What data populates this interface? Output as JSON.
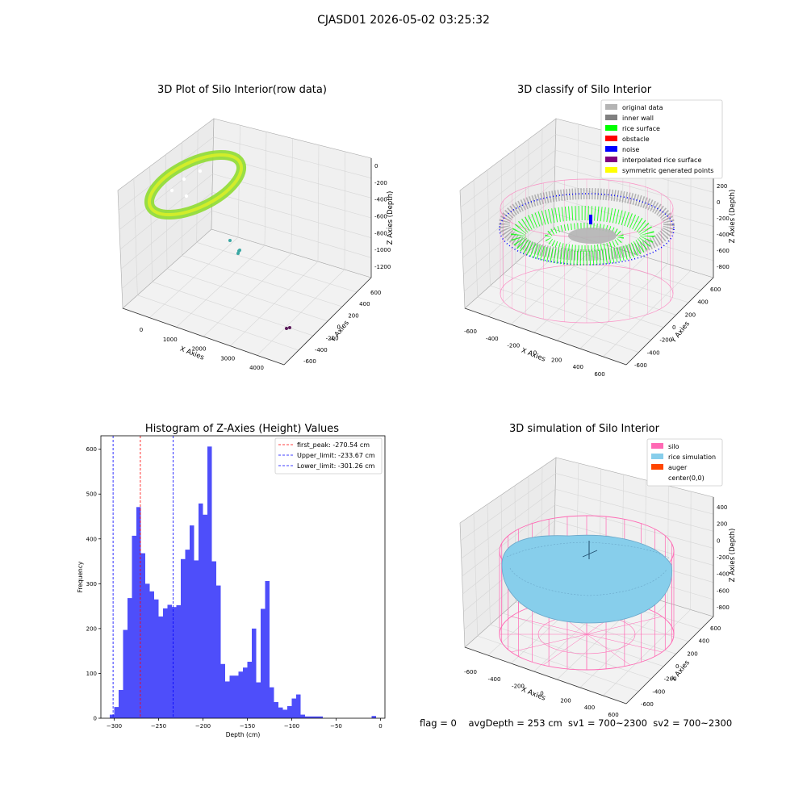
{
  "figure": {
    "suptitle": "CJASD01 2026-05-02 03:25:32",
    "footer": "flag = 0    avgDepth = 253 cm  sv1 = 700~2300  sv2 = 700~2300",
    "colors": {
      "histogram": "#4e4efa",
      "silo": "#ff69b4",
      "rice_simulation": "#87ceeb",
      "auger": "#ff4500",
      "rice_surface": "#00ff00",
      "noise": "#0000ff",
      "inner_wall": "#808080",
      "original_data": "#b4b4b4",
      "obstacle": "#ff0000",
      "interpolated": "#800080",
      "symmetric": "#ffff00"
    }
  },
  "plots": [
    {
      "title": "3D Plot of Silo Interior(row data)",
      "xlabel": "X Axies",
      "ylabel": "Y Axies",
      "zlabel": "Z Axies (Depth)",
      "xticks": [
        "0",
        "1000",
        "2000",
        "3000",
        "4000"
      ],
      "yticks": [
        "-600",
        "-400",
        "-200",
        "0",
        "200",
        "400",
        "600"
      ],
      "zticks": [
        "0",
        "-200",
        "-400",
        "-600",
        "-800",
        "-1000",
        "-1200"
      ]
    },
    {
      "title": "3D classify of Silo Interior",
      "xlabel": "X Axies",
      "ylabel": "Y Axies",
      "zlabel": "Z Axies (Depth)",
      "xticks": [
        "-600",
        "-400",
        "-200",
        "0",
        "200",
        "400",
        "600"
      ],
      "yticks": [
        "-600",
        "-400",
        "-200",
        "0",
        "200",
        "400",
        "600"
      ],
      "zticks": [
        "200",
        "0",
        "-200",
        "-400",
        "-600",
        "-800"
      ],
      "legend": [
        {
          "label": "original data",
          "color": "#b4b4b4"
        },
        {
          "label": "inner wall",
          "color": "#808080"
        },
        {
          "label": "rice surface",
          "color": "#00ff00"
        },
        {
          "label": "obstacle",
          "color": "#ff0000"
        },
        {
          "label": "noise",
          "color": "#0000ff"
        },
        {
          "label": "interpolated rice surface",
          "color": "#800080"
        },
        {
          "label": "symmetric generated points",
          "color": "#ffff00"
        }
      ]
    },
    {
      "title": "3D simulation of Silo Interior",
      "xlabel": "X Axies",
      "ylabel": "Y Axies",
      "zlabel": "Z Axies (Depth)",
      "xticks": [
        "-600",
        "-400",
        "-200",
        "0",
        "200",
        "400",
        "600"
      ],
      "yticks": [
        "-600",
        "-400",
        "-200",
        "0",
        "200",
        "400",
        "600"
      ],
      "zticks": [
        "400",
        "200",
        "0",
        "-200",
        "-400",
        "-600",
        "-800"
      ],
      "legend": [
        {
          "label": "silo",
          "color": "#ff69b4"
        },
        {
          "label": "rice simulation",
          "color": "#87ceeb"
        },
        {
          "label": "auger",
          "color": "#ff4500"
        },
        {
          "label": "center(0,0)",
          "color": "#ffffff"
        }
      ]
    }
  ],
  "chart_data": {
    "type": "bar",
    "title": "Histogram of Z-Axies (Height) Values",
    "xlabel": "Depth (cm)",
    "ylabel": "Frequency",
    "xlim": [
      -315,
      5
    ],
    "ylim": [
      0,
      630
    ],
    "xticks": [
      -300,
      -250,
      -200,
      -150,
      -100,
      -50,
      0
    ],
    "yticks": [
      0,
      100,
      200,
      300,
      400,
      500,
      600
    ],
    "bin_width": 5,
    "bin_starts": [
      -305,
      -300,
      -295,
      -290,
      -285,
      -280,
      -275,
      -270,
      -265,
      -260,
      -255,
      -250,
      -245,
      -240,
      -235,
      -230,
      -225,
      -220,
      -215,
      -210,
      -205,
      -200,
      -195,
      -190,
      -185,
      -180,
      -175,
      -170,
      -165,
      -160,
      -155,
      -150,
      -145,
      -140,
      -135,
      -130,
      -125,
      -120,
      -115,
      -110,
      -105,
      -100,
      -95,
      -90,
      -85,
      -80,
      -75,
      -70,
      -65,
      -60,
      -55,
      -50,
      -45,
      -40,
      -35,
      -30,
      -25,
      -20,
      -15,
      -10,
      -5,
      0
    ],
    "values": [
      8,
      25,
      63,
      197,
      268,
      407,
      471,
      368,
      300,
      283,
      265,
      227,
      245,
      253,
      248,
      252,
      355,
      376,
      430,
      352,
      479,
      454,
      606,
      350,
      296,
      121,
      82,
      95,
      95,
      104,
      113,
      126,
      200,
      80,
      244,
      306,
      69,
      36,
      24,
      19,
      27,
      44,
      53,
      8,
      4,
      4,
      4,
      4,
      0,
      0,
      0,
      0,
      0,
      0,
      0,
      0,
      0,
      0,
      0,
      5,
      0,
      0
    ],
    "lines": [
      {
        "label": "first_peak: -270.54 cm",
        "value": -270.54,
        "color": "#ff0000"
      },
      {
        "label": "Upper_limit: -233.67 cm",
        "value": -233.67,
        "color": "#0000ff"
      },
      {
        "label": "Lower_limit: -301.26 cm",
        "value": -301.26,
        "color": "#0000ff"
      }
    ]
  }
}
